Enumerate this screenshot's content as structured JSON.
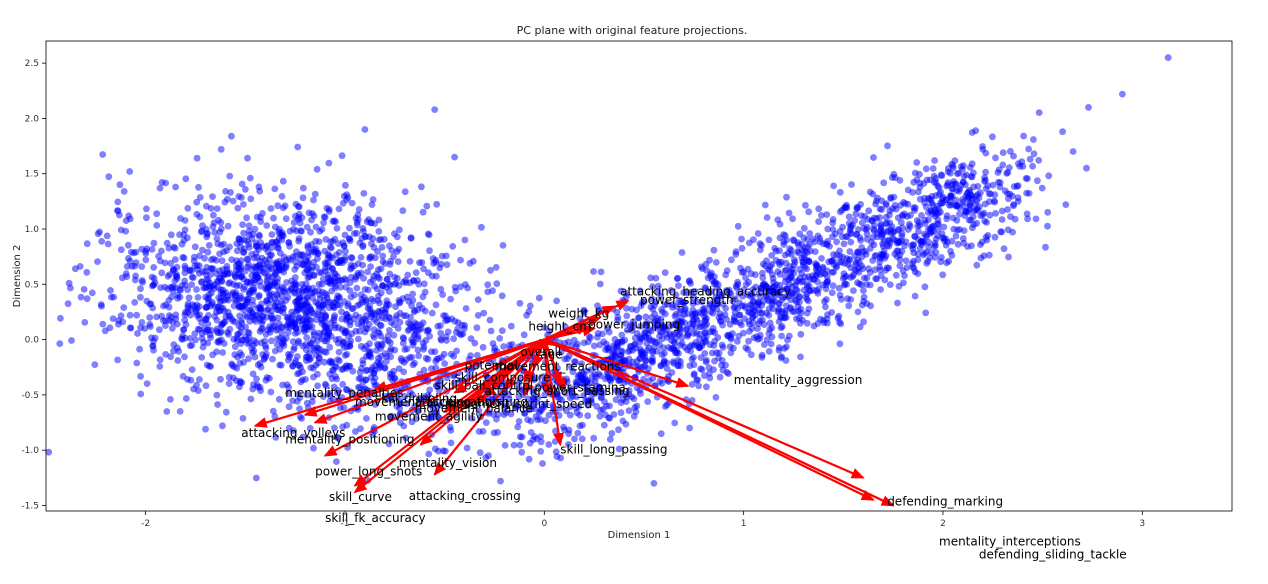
{
  "chart_data": {
    "type": "scatter",
    "title": "PC plane with original feature projections.",
    "xlabel": "Dimension 1",
    "ylabel": "Dimension 2",
    "xlim": [
      -2.5,
      3.45
    ],
    "ylim": [
      -1.55,
      2.7
    ],
    "xticks": [
      -2,
      -1,
      0,
      1,
      2,
      3
    ],
    "yticks": [
      -1.5,
      -1.0,
      -0.5,
      0.0,
      0.5,
      1.0,
      1.5,
      2.0,
      2.5
    ],
    "xtick_labels": [
      "-2",
      "-1",
      "0",
      "1",
      "2",
      "3"
    ],
    "ytick_labels": [
      "-1.5",
      "-1.0",
      "-0.5",
      "0.0",
      "0.5",
      "1.0",
      "1.5",
      "2.0",
      "2.5"
    ],
    "grid": false,
    "point_color": "#0000ff",
    "arrow_color": "#ff0000",
    "arrow_origin": [
      0.0,
      0.0
    ],
    "clusters": [
      {
        "cx": -1.35,
        "cy": 0.45,
        "sx": 0.42,
        "sy": 0.42,
        "n": 1500
      },
      {
        "cx": -0.7,
        "cy": -0.25,
        "sx": 0.35,
        "sy": 0.35,
        "n": 500
      }
    ],
    "band": {
      "x_from": -0.1,
      "x_to": 2.3,
      "y_at_from": -0.6,
      "y_at_to": 1.4,
      "spread": 0.25,
      "n": 1800
    },
    "extra_points": [
      {
        "x": -2.1,
        "y": 0.98
      },
      {
        "x": -2.08,
        "y": 1.52
      },
      {
        "x": -2.0,
        "y": 0.8
      },
      {
        "x": -1.98,
        "y": 0.2
      },
      {
        "x": -1.85,
        "y": 1.38
      },
      {
        "x": -0.55,
        "y": 2.08
      },
      {
        "x": -0.9,
        "y": 1.9
      },
      {
        "x": -0.45,
        "y": 1.65
      },
      {
        "x": 3.13,
        "y": 2.55
      },
      {
        "x": 2.9,
        "y": 2.22
      },
      {
        "x": 2.73,
        "y": 2.1
      },
      {
        "x": 2.72,
        "y": 1.55
      },
      {
        "x": 2.6,
        "y": 1.88
      },
      {
        "x": 2.48,
        "y": 1.62
      },
      {
        "x": 2.3,
        "y": 1.58
      },
      {
        "x": 2.22,
        "y": 0.9
      },
      {
        "x": 2.2,
        "y": 1.72
      },
      {
        "x": 0.55,
        "y": -1.3
      },
      {
        "x": -0.22,
        "y": -1.28
      },
      {
        "x": -1.28,
        "y": -0.8
      }
    ],
    "arrows": [
      {
        "name": "attacking_heading_accuracy",
        "x": 0.42,
        "y": 0.35,
        "label_x": 0.38,
        "label_y": 0.4
      },
      {
        "name": "power_strength",
        "x": 0.35,
        "y": 0.3,
        "label_x": 0.48,
        "label_y": 0.32
      },
      {
        "name": "weight_kg",
        "x": 0.28,
        "y": 0.2,
        "label_x": 0.02,
        "label_y": 0.2
      },
      {
        "name": "height_cm",
        "x": 0.22,
        "y": 0.12,
        "label_x": -0.08,
        "label_y": 0.08
      },
      {
        "name": "power_jumping",
        "x": 0.25,
        "y": 0.1,
        "label_x": 0.22,
        "label_y": 0.1
      },
      {
        "name": "mentality_aggression",
        "x": 0.72,
        "y": -0.42,
        "label_x": 0.95,
        "label_y": -0.4
      },
      {
        "name": "defending_marking",
        "x": 1.6,
        "y": -1.25,
        "label_x": 1.72,
        "label_y": -1.5
      },
      {
        "name": "mentality_interceptions",
        "x": 1.65,
        "y": -1.45,
        "label_x": 1.98,
        "label_y": -1.86
      },
      {
        "name": "defending_sliding_tackle",
        "x": 1.75,
        "y": -1.5,
        "label_x": 2.18,
        "label_y": -1.98
      },
      {
        "name": "skill_long_passing",
        "x": 0.08,
        "y": -0.95,
        "label_x": 0.08,
        "label_y": -1.03
      },
      {
        "name": "attacking_volleys",
        "x": -1.45,
        "y": -0.78,
        "label_x": -1.52,
        "label_y": -0.88
      },
      {
        "name": "mentality_positioning",
        "x": -1.15,
        "y": -0.75,
        "label_x": -1.3,
        "label_y": -0.94
      },
      {
        "name": "power_long_shots",
        "x": -1.1,
        "y": -1.05,
        "label_x": -1.15,
        "label_y": -1.23
      },
      {
        "name": "mentality_vision",
        "x": -0.62,
        "y": -0.95,
        "label_x": -0.73,
        "label_y": -1.15
      },
      {
        "name": "skill_curve",
        "x": -0.95,
        "y": -1.32,
        "label_x": -1.08,
        "label_y": -1.46
      },
      {
        "name": "attacking_crossing",
        "x": -0.55,
        "y": -1.22,
        "label_x": -0.68,
        "label_y": -1.45
      },
      {
        "name": "skill_fk_accuracy",
        "x": -0.95,
        "y": -1.38,
        "label_x": -1.1,
        "label_y": -1.65
      },
      {
        "name": "mentality_penalties",
        "x": -0.85,
        "y": -0.45,
        "label_x": -1.3,
        "label_y": -0.52
      },
      {
        "name": "movement_agility",
        "x": -0.5,
        "y": -0.65,
        "label_x": -0.85,
        "label_y": -0.73
      },
      {
        "name": "skill_ball_control",
        "x": -0.45,
        "y": -0.48,
        "label_x": -0.55,
        "label_y": -0.45
      },
      {
        "name": "skill_dribbling",
        "x": -0.3,
        "y": -0.52,
        "label_x": -0.85,
        "label_y": -0.57
      },
      {
        "name": "movement_acceleration",
        "x": -0.2,
        "y": -0.45,
        "label_x": -0.95,
        "label_y": -0.6
      },
      {
        "name": "movement_sprint_speed",
        "x": -0.1,
        "y": -0.5,
        "label_x": -0.5,
        "label_y": -0.62
      },
      {
        "name": "attacking_finishing",
        "x": -1.2,
        "y": -0.68,
        "label_x": -0.65,
        "label_y": -0.6
      },
      {
        "name": "attacking_short_passing",
        "x": 0.02,
        "y": -0.5,
        "label_x": -0.3,
        "label_y": -0.5
      },
      {
        "name": "movement_reactions",
        "x": 0.08,
        "y": -0.4,
        "label_x": -0.25,
        "label_y": -0.28
      },
      {
        "name": "skill_composure",
        "x": -0.1,
        "y": -0.38,
        "label_x": -0.45,
        "label_y": -0.38
      },
      {
        "name": "power_stamina",
        "x": 0.1,
        "y": -0.45,
        "label_x": -0.05,
        "label_y": -0.47
      },
      {
        "name": "movement_balance",
        "x": -0.35,
        "y": -0.58,
        "label_x": -0.65,
        "label_y": -0.66
      },
      {
        "name": "overall",
        "x": 0.0,
        "y": -0.1,
        "label_x": -0.12,
        "label_y": -0.15
      },
      {
        "name": "potential",
        "x": -0.05,
        "y": -0.25,
        "label_x": -0.4,
        "label_y": -0.27
      },
      {
        "name": "age",
        "x": 0.05,
        "y": -0.05,
        "label_x": -0.02,
        "label_y": -0.17
      }
    ]
  }
}
